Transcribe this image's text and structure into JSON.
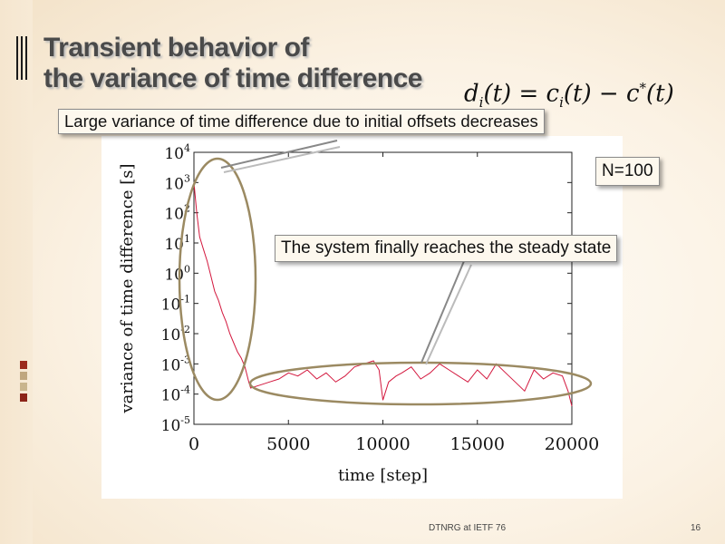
{
  "slide": {
    "title_line1": "Transient behavior of",
    "title_line2": "the variance of time difference",
    "formula_lhs": "d",
    "formula_lhs_sub": "i",
    "formula_lhs_arg": "(t) = ",
    "formula_rhs1": "c",
    "formula_rhs1_sub": "i",
    "formula_rhs1_arg": "(t) − ",
    "formula_rhs2": "c",
    "formula_rhs2_sup": "*",
    "formula_rhs2_arg": "(t)",
    "callout_top": "Large variance of time difference due to initial offsets decreases",
    "callout_n": "N=100",
    "callout_steady": "The system finally reaches the steady state",
    "footer": "DTNRG at IETF 76",
    "page_number": "16"
  },
  "colors": {
    "series": "#d3183e",
    "ellipse": "#9b8a62",
    "title": "#4a4a4a",
    "deco_square_1": "#9b2a1c",
    "deco_square_2": "#c0a77f",
    "deco_square_3": "#c9b58d",
    "deco_square_4": "#8c2418"
  },
  "chart_data": {
    "type": "line",
    "xlabel": "time [step]",
    "ylabel": "variance of time difference [s]",
    "xlim": [
      0,
      20000
    ],
    "ylim_log10": [
      -5,
      4
    ],
    "y_scale": "log",
    "x_ticks": [
      0,
      5000,
      10000,
      15000,
      20000
    ],
    "x_tick_labels": [
      "0",
      "5000",
      "10000",
      "15000",
      "20000"
    ],
    "y_ticks_log10": [
      4,
      3,
      2,
      1,
      0,
      -1,
      -2,
      -3,
      -4,
      -5
    ],
    "series": [
      {
        "x": [
          0,
          150,
          300,
          500,
          700,
          900,
          1100,
          1300,
          1500,
          1700,
          1900,
          2100,
          2300,
          2500,
          2700,
          2900,
          3000,
          3500,
          4000,
          4500,
          5000,
          5500,
          6000,
          6500,
          7000,
          7500,
          8000,
          8500,
          9000,
          9500,
          9800,
          10000,
          10300,
          10700,
          11000,
          11500,
          12000,
          12500,
          13000,
          13500,
          14000,
          14500,
          15000,
          15500,
          16000,
          16500,
          17000,
          17500,
          18000,
          18500,
          19000,
          19500,
          19800,
          20000
        ],
        "y_log10": [
          3.0,
          2.0,
          1.2,
          0.8,
          0.4,
          -0.1,
          -0.6,
          -0.9,
          -1.3,
          -1.6,
          -2.0,
          -2.3,
          -2.6,
          -2.8,
          -3.1,
          -3.6,
          -3.8,
          -3.7,
          -3.6,
          -3.5,
          -3.3,
          -3.4,
          -3.2,
          -3.5,
          -3.3,
          -3.6,
          -3.4,
          -3.1,
          -3.0,
          -2.9,
          -3.2,
          -4.2,
          -3.6,
          -3.4,
          -3.3,
          -3.1,
          -3.5,
          -3.3,
          -3.0,
          -3.2,
          -3.4,
          -3.6,
          -3.2,
          -3.5,
          -3.0,
          -3.3,
          -3.6,
          -3.9,
          -3.2,
          -3.5,
          -3.3,
          -3.4,
          -3.9,
          -4.4
        ]
      }
    ]
  }
}
